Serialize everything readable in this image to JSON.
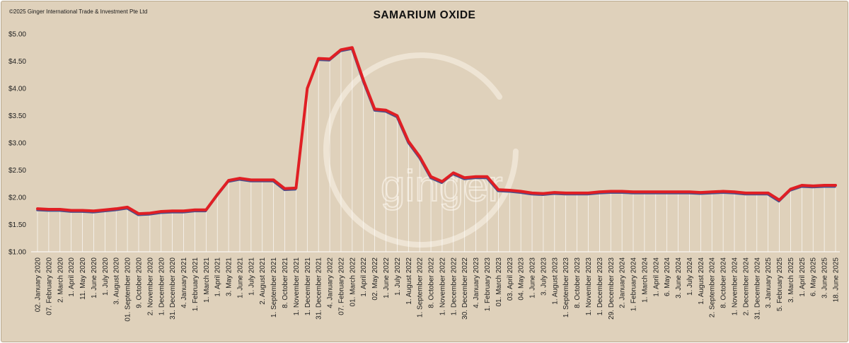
{
  "copyright": "©2025 Ginger International Trade & Investment Pte Ltd",
  "watermark": "ginger",
  "colors": {
    "background": "#dfd1bb",
    "line": "#e01f24",
    "line_shadow": "#4a4f8c",
    "droplines": "#ffffff"
  },
  "chart_data": {
    "type": "line",
    "title": "SAMARIUM OXIDE",
    "xlabel": "",
    "ylabel": "",
    "ylim": [
      1.0,
      5.0
    ],
    "yticks": [
      "$1.00",
      "$1.50",
      "$2.00",
      "$2.50",
      "$3.00",
      "$3.50",
      "$4.00",
      "$4.50",
      "$5.00"
    ],
    "ytick_values": [
      1.0,
      1.5,
      2.0,
      2.5,
      3.0,
      3.5,
      4.0,
      4.5,
      5.0
    ],
    "grid": false,
    "legend": "none",
    "categories": [
      "02. January 2020",
      "07. February 2020",
      "2. March 2020",
      "1. April 2020",
      "11. May 2020",
      "1. June 2020",
      "1. July 2020",
      "3. August 2020",
      "01. September 2020",
      "9. October 2020",
      "2. November 2020",
      "1. December 2020",
      "31. December 2020",
      "4. January 2021",
      "1. February 2021",
      "1. March 2021",
      "1. April 2021",
      "3. May 2021",
      "1. June 2021",
      "1. July 2021",
      "2. August 2021",
      "1. September 2021",
      "8. October 2021",
      "1. November 2021",
      "1. December 2021",
      "31. December 2021",
      "4. January 2022",
      "07. February 2022",
      "01. March 2022",
      "1. April 2022",
      "02. May 2022",
      "1. June 2022",
      "1. July 2022",
      "1. August 2022",
      "1. September 2022",
      "8. October 2022",
      "1. November 2022",
      "1. December 2022",
      "30. December 2022",
      "4. January 2023",
      "1. February 2023",
      "01. March 2023",
      "03. April 2023",
      "04. May 2023",
      "1. June 2023",
      "3. July 2023",
      "1. August 2023",
      "1. September 2023",
      "8. October 2023",
      "1. November 2023",
      "1. December 2023",
      "29. December 2023",
      "2. January 2024",
      "1. February 2024",
      "1. March 2024",
      "1. April 2024",
      "6. May 2024",
      "3. June 2024",
      "1. July 2024",
      "1. August 2024",
      "2. September 2024",
      "8. October 2024",
      "1. November 2024",
      "2. December 2024",
      "31. December 2024",
      "3. January 2025",
      "5. February 2025",
      "3. March 2025",
      "1. April 2025",
      "6. May 2025",
      "3. June 2025",
      "18. June 2025"
    ],
    "series": [
      {
        "name": "Samarium Oxide",
        "values": [
          1.79,
          1.78,
          1.78,
          1.76,
          1.76,
          1.75,
          1.77,
          1.79,
          1.82,
          1.7,
          1.71,
          1.74,
          1.75,
          1.75,
          1.77,
          1.77,
          2.05,
          2.31,
          2.35,
          2.32,
          2.32,
          2.32,
          2.16,
          2.17,
          4.0,
          4.55,
          4.54,
          4.71,
          4.75,
          4.15,
          3.62,
          3.6,
          3.5,
          3.03,
          2.75,
          2.38,
          2.29,
          2.45,
          2.36,
          2.38,
          2.38,
          2.14,
          2.13,
          2.11,
          2.08,
          2.07,
          2.09,
          2.08,
          2.08,
          2.08,
          2.1,
          2.11,
          2.11,
          2.1,
          2.1,
          2.1,
          2.1,
          2.1,
          2.1,
          2.09,
          2.1,
          2.11,
          2.1,
          2.08,
          2.08,
          2.08,
          1.95,
          2.15,
          2.22,
          2.21,
          2.22,
          2.22
        ]
      }
    ]
  }
}
